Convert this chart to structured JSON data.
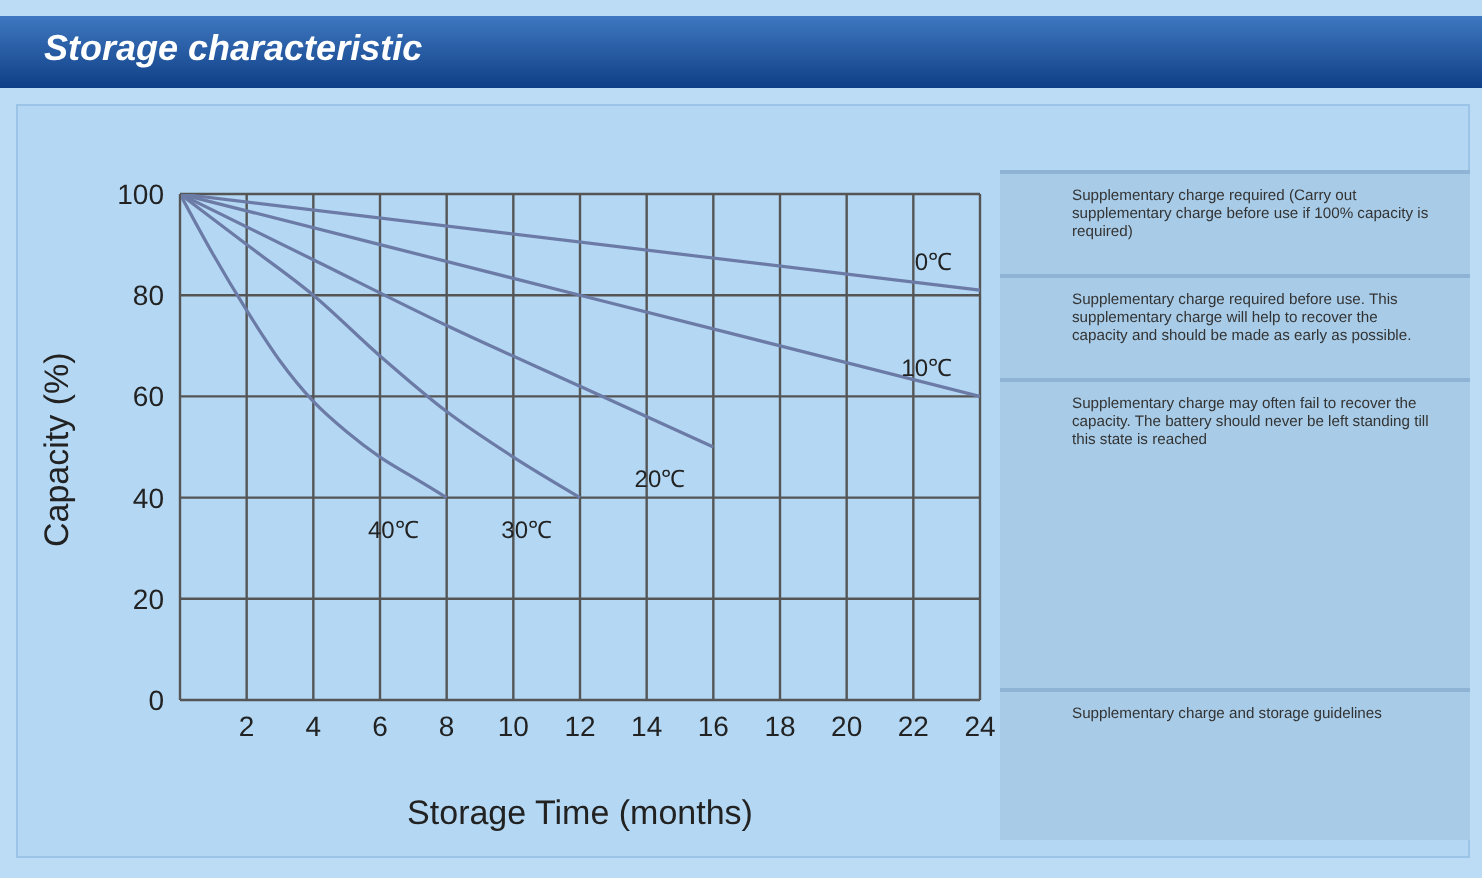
{
  "chart_data": {
    "type": "line",
    "title": "Storage characteristic",
    "xlabel": "Storage Time (months)",
    "ylabel": "Capacity (%)",
    "xlim": [
      0,
      24
    ],
    "xticks": [
      2,
      4,
      6,
      8,
      10,
      12,
      14,
      16,
      18,
      20,
      22,
      24
    ],
    "ylim": [
      0,
      100
    ],
    "yticks": [
      0,
      20,
      40,
      60,
      80,
      100
    ],
    "grid": true,
    "legend": false,
    "marker": "none",
    "line_style": "solid",
    "series": [
      {
        "name": "0℃",
        "color": "#6b7ba6",
        "x": [
          0,
          24
        ],
        "values": [
          100,
          81
        ]
      },
      {
        "name": "10℃",
        "color": "#6b7ba6",
        "x": [
          0,
          12,
          24
        ],
        "values": [
          100,
          80,
          60
        ]
      },
      {
        "name": "20℃",
        "color": "#6b7ba6",
        "x": [
          0,
          4,
          8,
          12,
          16
        ],
        "values": [
          100,
          87,
          74,
          62,
          50
        ]
      },
      {
        "name": "30℃",
        "color": "#6b7ba6",
        "x": [
          0,
          2,
          4,
          6,
          8,
          10,
          12
        ],
        "values": [
          100,
          90,
          80,
          68,
          57,
          48,
          40
        ]
      },
      {
        "name": "40℃",
        "color": "#6b7ba6",
        "x": [
          0,
          1,
          2,
          3,
          4,
          5,
          6,
          7,
          8
        ],
        "values": [
          100,
          88,
          77,
          67,
          59,
          53,
          48,
          44,
          40
        ]
      }
    ],
    "annotations": [
      "Supplementary charge required (Carry out supplementary charge before use if 100% capacity is required)",
      "Supplementary charge required before use. This supplementary charge will help to recover the capacity and should be made as early as possible.",
      "Supplementary charge may often fail to recover the capacity. The battery should never be left standing till this state is reached",
      "Supplementary charge and storage guidelines"
    ]
  }
}
